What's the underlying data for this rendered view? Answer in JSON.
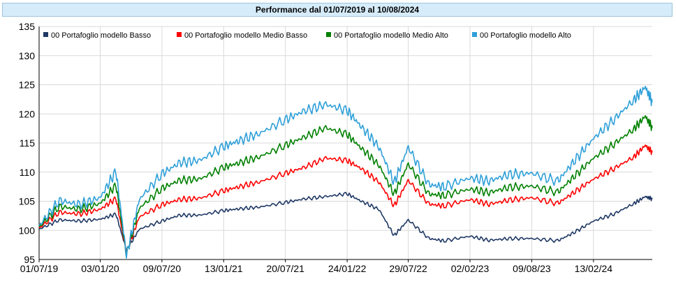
{
  "chart_data": {
    "type": "line",
    "title": "Performance dal 01/07/2019 al 10/08/2024",
    "xlabel": "",
    "ylabel": "",
    "ylim": [
      95,
      135
    ],
    "yticks": [
      95,
      100,
      105,
      110,
      115,
      120,
      125,
      130,
      135
    ],
    "xlim": [
      "2019-07-01",
      "2024-08-10"
    ],
    "xticks": [
      "01/07/19",
      "03/01/20",
      "09/07/20",
      "13/01/21",
      "20/07/21",
      "24/01/22",
      "29/07/22",
      "02/02/23",
      "09/08/23",
      "13/02/24"
    ],
    "grid": true,
    "legend_position": "top",
    "x": [
      "2019-07-01",
      "2019-09-01",
      "2019-11-01",
      "2020-01-03",
      "2020-02-20",
      "2020-03-23",
      "2020-05-01",
      "2020-07-09",
      "2020-09-01",
      "2020-11-01",
      "2021-01-13",
      "2021-03-01",
      "2021-05-01",
      "2021-07-20",
      "2021-09-15",
      "2021-11-20",
      "2022-01-24",
      "2022-03-08",
      "2022-05-01",
      "2022-06-16",
      "2022-07-29",
      "2022-09-30",
      "2022-11-15",
      "2023-02-02",
      "2023-04-01",
      "2023-06-01",
      "2023-08-09",
      "2023-10-27",
      "2023-12-15",
      "2024-02-13",
      "2024-04-15",
      "2024-06-15",
      "2024-07-20",
      "2024-08-10"
    ],
    "series": [
      {
        "name": "00 Portafoglio modello Basso",
        "color": "#1f3864",
        "values": [
          100.2,
          101.8,
          101.6,
          101.9,
          102.8,
          96.6,
          100.2,
          101.6,
          102.6,
          102.6,
          103.4,
          103.7,
          104.0,
          104.8,
          105.4,
          105.8,
          106.3,
          105.0,
          103.6,
          99.1,
          101.8,
          98.6,
          98.2,
          99.0,
          98.3,
          98.6,
          98.6,
          98.2,
          99.6,
          101.6,
          102.8,
          104.6,
          105.8,
          105.4
        ]
      },
      {
        "name": "00 Portafoglio modello Medio Basso",
        "color": "#ff0000",
        "values": [
          100.4,
          103.1,
          102.8,
          103.6,
          105.5,
          96.2,
          102.3,
          104.4,
          105.3,
          105.5,
          106.8,
          107.5,
          108.3,
          109.8,
          110.8,
          112.4,
          112.0,
          110.6,
          108.3,
          104.2,
          108.6,
          104.5,
          104.2,
          105.3,
          104.5,
          105.2,
          105.6,
          104.6,
          106.5,
          108.8,
          110.6,
          112.6,
          114.6,
          113.4
        ]
      },
      {
        "name": "00 Portafoglio modello Medio Alto",
        "color": "#008000",
        "values": [
          100.6,
          104.1,
          103.6,
          104.6,
          107.8,
          95.9,
          103.8,
          107.2,
          108.6,
          108.8,
          110.8,
          111.6,
          112.6,
          114.6,
          116.0,
          117.6,
          116.5,
          114.1,
          111.2,
          106.2,
          111.4,
          106.2,
          106.0,
          107.1,
          106.5,
          107.4,
          107.6,
          106.5,
          109.2,
          112.4,
          114.8,
          117.4,
          119.6,
          117.6
        ]
      },
      {
        "name": "00 Portafoglio modello Alto",
        "color": "#2e9fd8",
        "values": [
          100.8,
          105.1,
          104.4,
          105.6,
          110.2,
          95.7,
          105.3,
          109.7,
          111.6,
          112.0,
          114.4,
          115.4,
          116.6,
          119.0,
          120.5,
          121.6,
          120.6,
          117.8,
          114.3,
          108.2,
          114.3,
          107.8,
          107.5,
          109.0,
          108.5,
          109.6,
          109.8,
          108.4,
          111.8,
          115.8,
          119.0,
          122.4,
          124.6,
          122.0
        ]
      }
    ]
  }
}
